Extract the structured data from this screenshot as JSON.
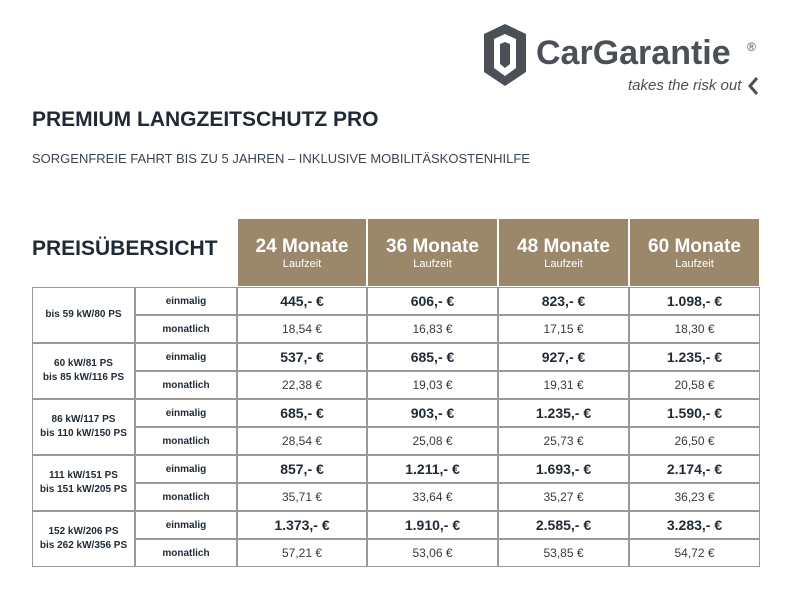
{
  "logo": {
    "brand": "CarGarantie",
    "registered": "®",
    "tagline": "takes the risk out"
  },
  "header": {
    "title": "PREMIUM LANGZEITSCHUTZ PRO",
    "subtitle": "SORGENFREIE FAHRT BIS ZU 5 JAHREN – INKLUSIVE MOBILITÄSKOSTENHILFE"
  },
  "table": {
    "heading": "PREISÜBERSICHT",
    "columns": [
      {
        "title": "24 Monate",
        "sub": "Laufzeit"
      },
      {
        "title": "36 Monate",
        "sub": "Laufzeit"
      },
      {
        "title": "48 Monate",
        "sub": "Laufzeit"
      },
      {
        "title": "60 Monate",
        "sub": "Laufzeit"
      }
    ],
    "groups": [
      {
        "label": [
          "bis 59 kW/80 PS"
        ],
        "rows": [
          {
            "type": "einmalig",
            "values": [
              "445,- €",
              "606,- €",
              "823,- €",
              "1.098,- €"
            ]
          },
          {
            "type": "monatlich",
            "values": [
              "18,54 €",
              "16,83 €",
              "17,15 €",
              "18,30 €"
            ]
          }
        ]
      },
      {
        "label": [
          "60 kW/81 PS",
          "bis 85 kW/116 PS"
        ],
        "rows": [
          {
            "type": "einmalig",
            "values": [
              "537,- €",
              "685,- €",
              "927,- €",
              "1.235,- €"
            ]
          },
          {
            "type": "monatlich",
            "values": [
              "22,38 €",
              "19,03 €",
              "19,31 €",
              "20,58 €"
            ]
          }
        ]
      },
      {
        "label": [
          "86 kW/117 PS",
          "bis 110 kW/150 PS"
        ],
        "rows": [
          {
            "type": "einmalig",
            "values": [
              "685,- €",
              "903,- €",
              "1.235,- €",
              "1.590,- €"
            ]
          },
          {
            "type": "monatlich",
            "values": [
              "28,54 €",
              "25,08 €",
              "25,73 €",
              "26,50 €"
            ]
          }
        ]
      },
      {
        "label": [
          "111 kW/151 PS",
          "bis 151 kW/205 PS"
        ],
        "rows": [
          {
            "type": "einmalig",
            "values": [
              "857,- €",
              "1.211,- €",
              "1.693,- €",
              "2.174,- €"
            ]
          },
          {
            "type": "monatlich",
            "values": [
              "35,71 €",
              "33,64 €",
              "35,27 €",
              "36,23 €"
            ]
          }
        ]
      },
      {
        "label": [
          "152 kW/206 PS",
          "bis 262 kW/356 PS"
        ],
        "rows": [
          {
            "type": "einmalig",
            "values": [
              "1.373,- €",
              "1.910,- €",
              "2.585,- €",
              "3.283,- €"
            ]
          },
          {
            "type": "monatlich",
            "values": [
              "57,21 €",
              "53,06 €",
              "53,85 €",
              "54,72 €"
            ]
          }
        ]
      }
    ]
  }
}
